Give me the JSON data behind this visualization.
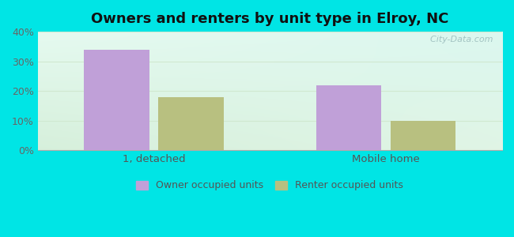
{
  "title": "Owners and renters by unit type in Elroy, NC",
  "categories": [
    "1, detached",
    "Mobile home"
  ],
  "owner_values": [
    34.0,
    22.0
  ],
  "renter_values": [
    18.0,
    10.0
  ],
  "owner_color": "#c0a0d8",
  "renter_color": "#b8c080",
  "ylim": [
    0,
    40
  ],
  "yticks": [
    0,
    10,
    20,
    30,
    40
  ],
  "yticklabels": [
    "0%",
    "10%",
    "20%",
    "30%",
    "40%"
  ],
  "bar_width": 0.28,
  "background_outer": "#00e5e5",
  "grid_color": "#d0e8d0",
  "title_fontsize": 13,
  "legend_labels": [
    "Owner occupied units",
    "Renter occupied units"
  ],
  "watermark": "  City-Data.com"
}
